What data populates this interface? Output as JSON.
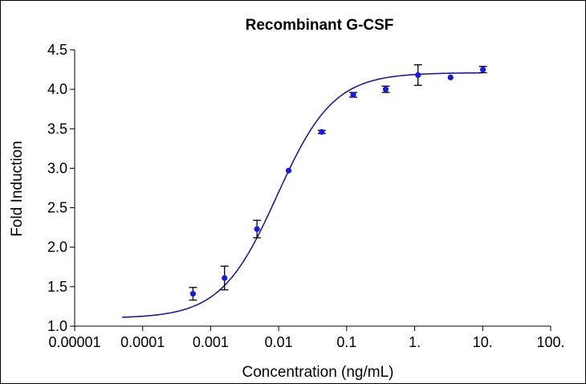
{
  "chart_data": {
    "type": "scatter",
    "title": "Recombinant G-CSF",
    "xlabel": "Concentration (ng/mL)",
    "ylabel": "Fold Induction",
    "x_scale": "log",
    "xlim": [
      1e-05,
      100
    ],
    "ylim": [
      1.0,
      4.5
    ],
    "x_ticks": [
      1e-05,
      0.0001,
      0.001,
      0.01,
      0.1,
      1,
      10,
      100
    ],
    "x_tick_labels": [
      "0.00001",
      "0.0001",
      "0.001",
      "0.01",
      "0.1",
      "1.",
      "10.",
      "100."
    ],
    "y_ticks": [
      1.0,
      1.5,
      2.0,
      2.5,
      3.0,
      3.5,
      4.0,
      4.5
    ],
    "y_tick_labels": [
      "1.0",
      "1.5",
      "2.0",
      "2.5",
      "3.0",
      "3.5",
      "4.0",
      "4.5"
    ],
    "series": [
      {
        "name": "Recombinant G-CSF",
        "color": "#1a1adb",
        "points": [
          {
            "x": 0.00055,
            "y": 1.41,
            "err": 0.08
          },
          {
            "x": 0.0016,
            "y": 1.61,
            "err": 0.15
          },
          {
            "x": 0.0048,
            "y": 2.23,
            "err": 0.11
          },
          {
            "x": 0.014,
            "y": 2.97,
            "err": 0.0
          },
          {
            "x": 0.043,
            "y": 3.46,
            "err": 0.02
          },
          {
            "x": 0.125,
            "y": 3.93,
            "err": 0.03
          },
          {
            "x": 0.375,
            "y": 4.0,
            "err": 0.04
          },
          {
            "x": 1.12,
            "y": 4.18,
            "err": 0.13
          },
          {
            "x": 3.37,
            "y": 4.15,
            "err": 0.0
          },
          {
            "x": 10.1,
            "y": 4.25,
            "err": 0.04
          }
        ]
      }
    ],
    "fit": {
      "name": "4PL fit",
      "color": "#1f1f8a",
      "bottom": 1.1,
      "top": 4.21,
      "ec50": 0.0095,
      "hill": 1.05,
      "x_start": 5e-05,
      "x_end": 10
    }
  }
}
